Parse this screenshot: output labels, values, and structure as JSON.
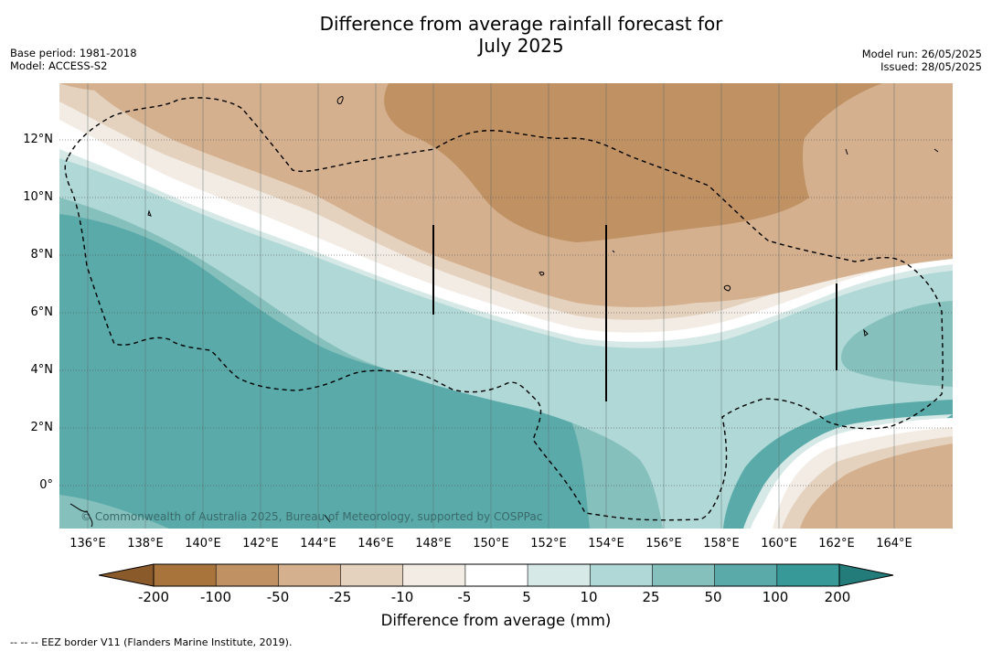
{
  "title": {
    "line1": "Difference from average rainfall forecast for",
    "line2": "July 2025"
  },
  "meta": {
    "base_period": "Base period: 1981-2018",
    "model": "Model: ACCESS-S2",
    "model_run": "Model run: 26/05/2025",
    "issued": "Issued: 28/05/2025"
  },
  "map": {
    "lat_labels": [
      "12°N",
      "10°N",
      "8°N",
      "6°N",
      "4°N",
      "2°N",
      "0°"
    ],
    "lon_labels": [
      "136°E",
      "138°E",
      "140°E",
      "142°E",
      "144°E",
      "146°E",
      "148°E",
      "150°E",
      "152°E",
      "154°E",
      "156°E",
      "158°E",
      "160°E",
      "162°E",
      "164°E"
    ],
    "copyright": "© Commonwealth of Australia 2025, Bureau of Meteorology, supported by COSPPac"
  },
  "colorbar": {
    "labels": [
      "-200",
      "-100",
      "-50",
      "-25",
      "-10",
      "-5",
      "5",
      "10",
      "25",
      "50",
      "100",
      "200"
    ],
    "colors": [
      "#a8743c",
      "#bf9163",
      "#d4b08e",
      "#e4d2bf",
      "#f2ece4",
      "#ffffff",
      "#d6e9e7",
      "#afd8d6",
      "#85c0bd",
      "#5aaaaa",
      "#379a98"
    ],
    "under_color": "#8b5a2b",
    "over_color": "#237c7a",
    "title": "Difference from average (mm)"
  },
  "footnote": "--  --  -- EEZ border V11 (Flanders Marine Institute, 2019)."
}
